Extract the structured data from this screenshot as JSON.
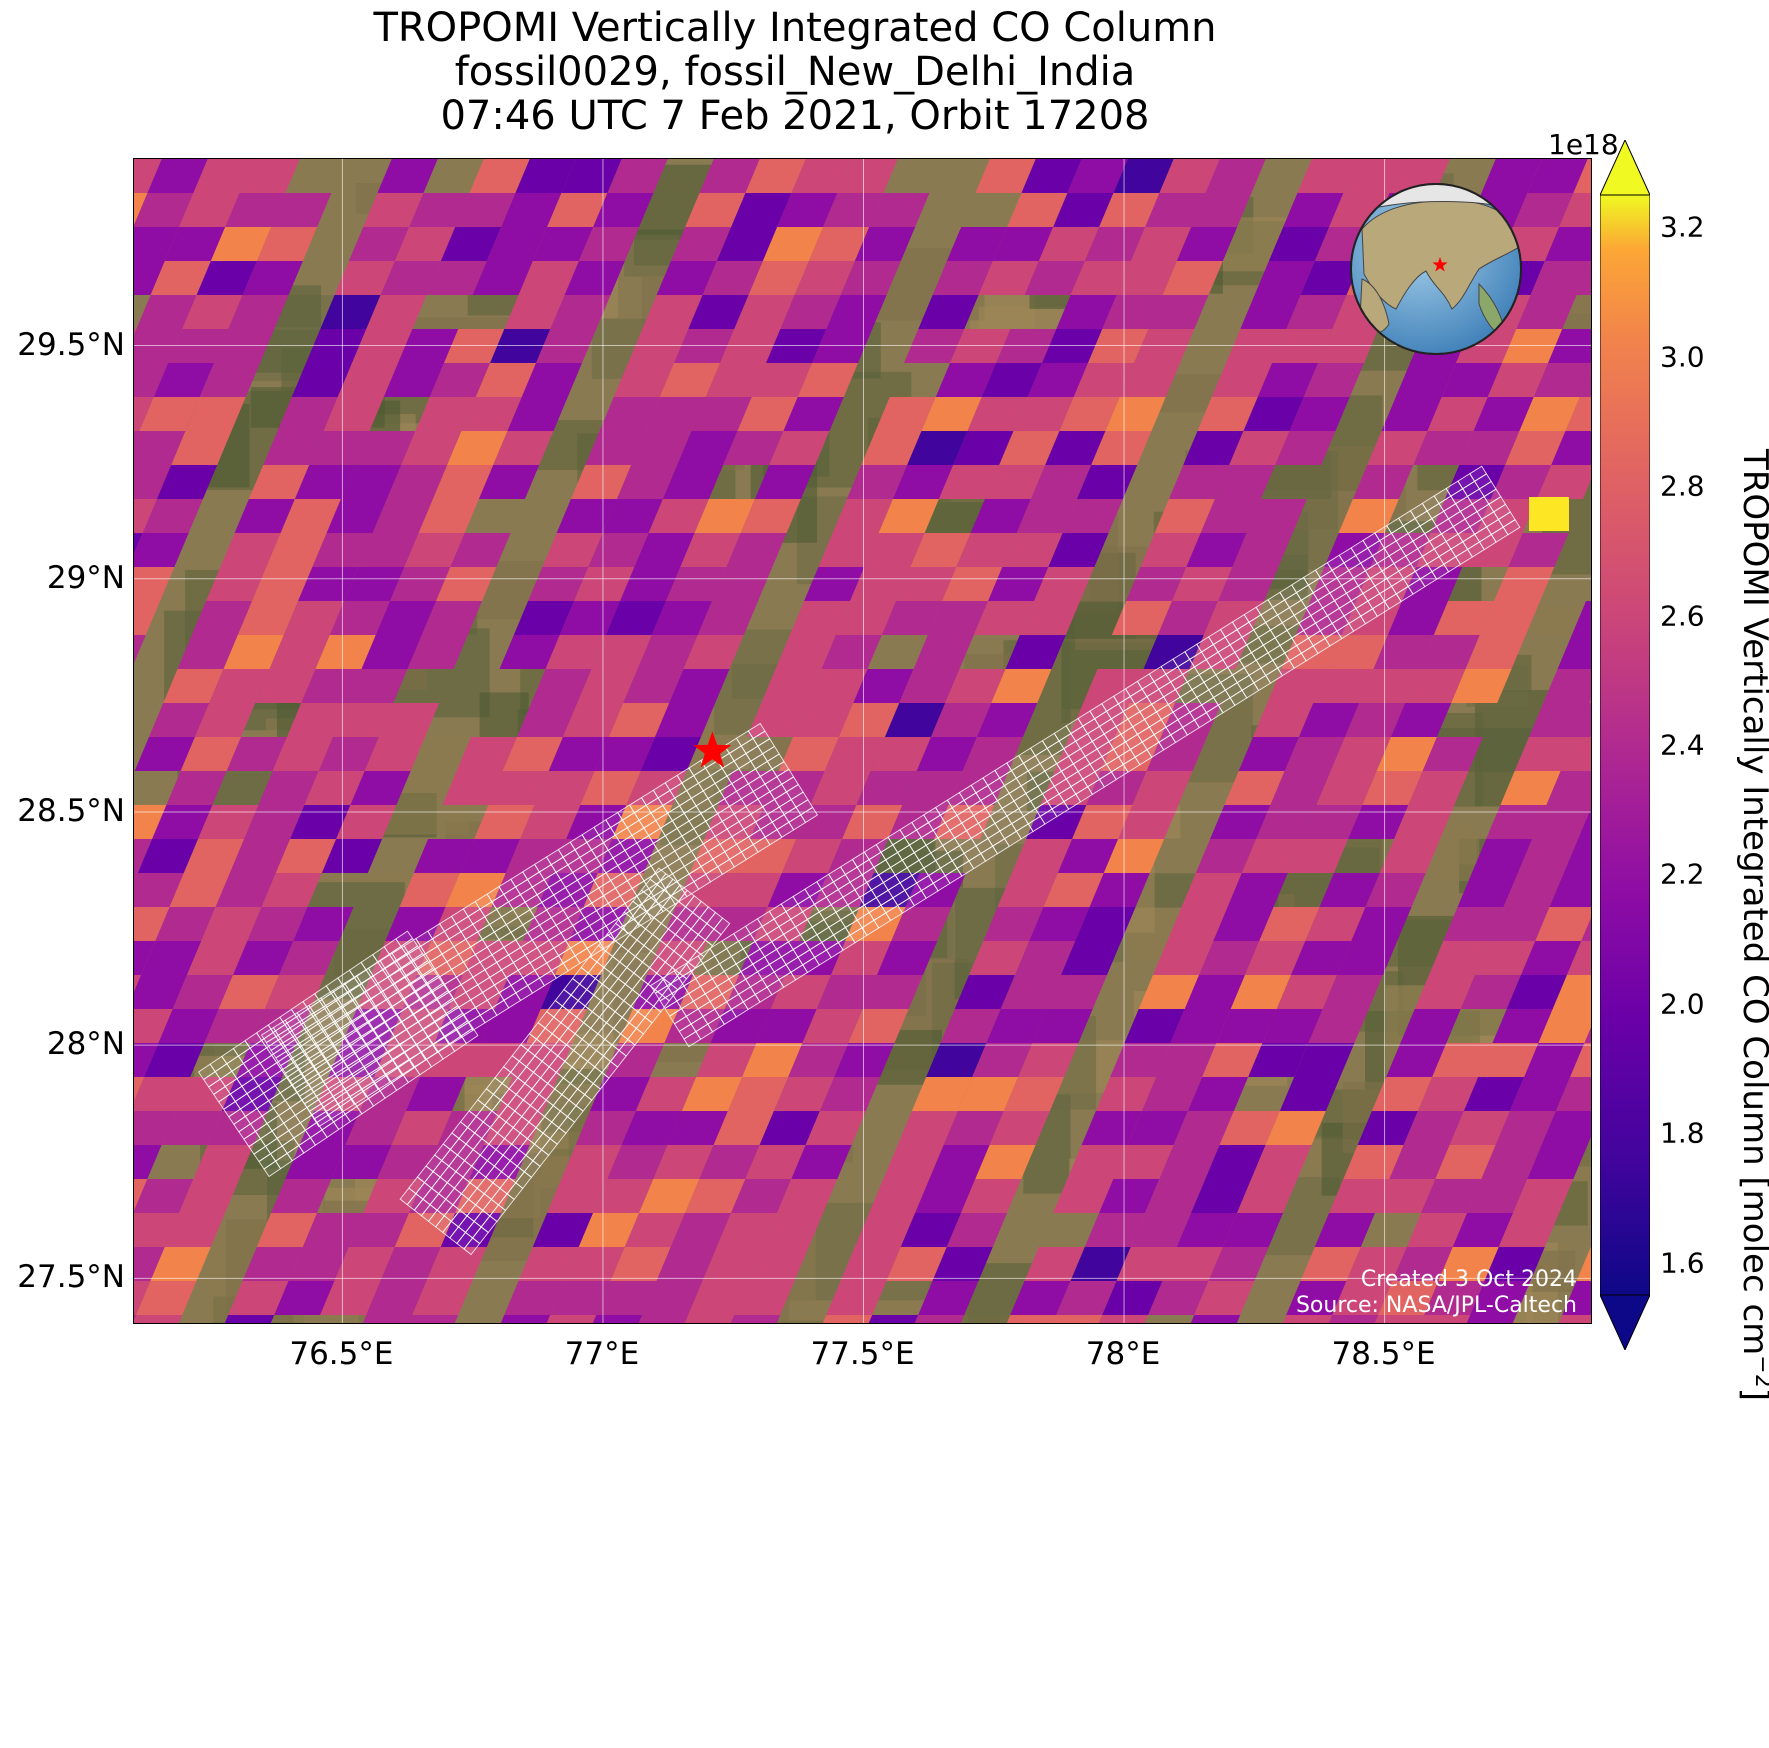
{
  "title": {
    "line1": "TROPOMI Vertically Integrated CO Column",
    "line2": "fossil0029, fossil_New_Delhi_India",
    "line3": "07:46 UTC 7 Feb 2021, Orbit 17208"
  },
  "map": {
    "lon_range": [
      76.1,
      78.9
    ],
    "lat_range": [
      27.4,
      29.9
    ],
    "x_ticks": [
      {
        "value": 76.5,
        "label": "76.5°E"
      },
      {
        "value": 77.0,
        "label": "77°E"
      },
      {
        "value": 77.5,
        "label": "77.5°E"
      },
      {
        "value": 78.0,
        "label": "78°E"
      },
      {
        "value": 78.5,
        "label": "78.5°E"
      }
    ],
    "y_ticks": [
      {
        "value": 29.5,
        "label": "29.5°N"
      },
      {
        "value": 29.0,
        "label": "29°N"
      },
      {
        "value": 28.5,
        "label": "28.5°N"
      },
      {
        "value": 28.0,
        "label": "28°N"
      },
      {
        "value": 27.5,
        "label": "27.5°N"
      }
    ],
    "gridlines": true,
    "basemap": "satellite imagery",
    "target_marker": {
      "lon": 77.21,
      "lat": 28.63,
      "symbol": "star",
      "color": "#ff0000"
    },
    "inset_globe": {
      "position": "top-right",
      "marker": "star",
      "marker_color": "#ff0000"
    },
    "credit_line1": "Created 3 Oct 2024",
    "credit_line2": "Source: NASA/JPL-Caltech"
  },
  "colorbar": {
    "colormap": "plasma",
    "vmin": 1.55,
    "vmax": 3.25,
    "extend": "both",
    "scale_label": "1e18",
    "ticks": [
      "1.6",
      "1.8",
      "2.0",
      "2.2",
      "2.4",
      "2.6",
      "2.8",
      "3.0",
      "3.2"
    ],
    "label": "TROPOMI Vertically Integrated CO Column [molec cm",
    "label_exponent": "−2",
    "label_suffix": "]"
  },
  "overlay": {
    "description_color": "#ffffff",
    "cell_color_low": "#7a0fa0",
    "cell_color_mid": "#d8456e",
    "cell_color_high": "#f48844",
    "hotspot_color": "#fde725"
  }
}
